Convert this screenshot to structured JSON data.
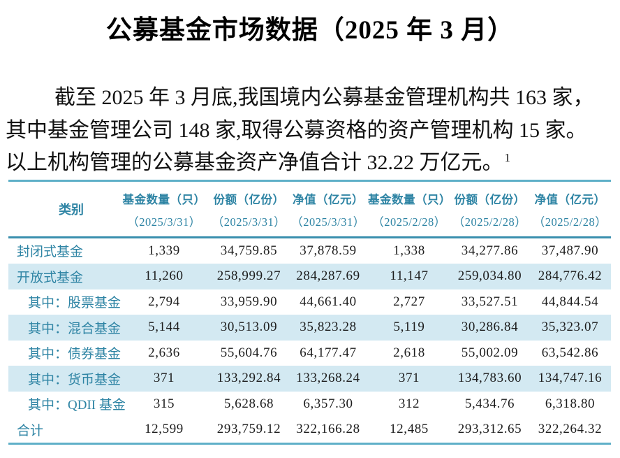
{
  "title": "公募基金市场数据（2025 年 3 月）",
  "paragraph": {
    "lines": [
      "截至 2025 年 3 月底,我国境内公募基金管理机构共 163 家，",
      "其中基金管理公司 148 家,取得公募资格的资产管理机构 15 家。",
      "以上机构管理的公募基金资产净值合计 32.22 万亿元。"
    ],
    "footnote_marker": "1"
  },
  "table": {
    "header": {
      "category_label": "类别",
      "columns": [
        {
          "label": "基金数量（只）",
          "date": "（2025/3/31）"
        },
        {
          "label": "份额（亿份）",
          "date": "（2025/3/31）"
        },
        {
          "label": "净值（亿元）",
          "date": "（2025/3/31）"
        },
        {
          "label": "基金数量（只）",
          "date": "（2025/2/28）"
        },
        {
          "label": "份额（亿份）",
          "date": "（2025/2/28）"
        },
        {
          "label": "净值（亿元）",
          "date": "（2025/2/28）"
        }
      ]
    },
    "rows": [
      {
        "category": "封闭式基金",
        "indent": false,
        "shaded": false,
        "values": [
          "1,339",
          "34,759.85",
          "37,878.59",
          "1,338",
          "34,277.86",
          "37,487.90"
        ]
      },
      {
        "category": "开放式基金",
        "indent": false,
        "shaded": true,
        "values": [
          "11,260",
          "258,999.27",
          "284,287.69",
          "11,147",
          "259,034.80",
          "284,776.42"
        ]
      },
      {
        "category": "其中：股票基金",
        "indent": true,
        "shaded": false,
        "values": [
          "2,794",
          "33,959.90",
          "44,661.40",
          "2,727",
          "33,527.51",
          "44,844.54"
        ]
      },
      {
        "category": "其中：混合基金",
        "indent": true,
        "shaded": true,
        "values": [
          "5,144",
          "30,513.09",
          "35,823.28",
          "5,119",
          "30,286.84",
          "35,323.07"
        ]
      },
      {
        "category": "其中：债券基金",
        "indent": true,
        "shaded": false,
        "values": [
          "2,636",
          "55,604.76",
          "64,177.47",
          "2,618",
          "55,002.09",
          "63,542.86"
        ]
      },
      {
        "category": "其中：货币基金",
        "indent": true,
        "shaded": true,
        "values": [
          "371",
          "133,292.84",
          "133,268.24",
          "371",
          "134,783.60",
          "134,747.16"
        ]
      },
      {
        "category": "其中：QDII 基金",
        "indent": true,
        "shaded": false,
        "values": [
          "315",
          "5,628.68",
          "6,357.30",
          "312",
          "5,434.76",
          "6,318.80"
        ]
      },
      {
        "category": "合计",
        "indent": false,
        "shaded": false,
        "values": [
          "12,599",
          "293,759.12",
          "322,166.28",
          "12,485",
          "293,312.65",
          "322,264.32"
        ]
      }
    ]
  },
  "colors": {
    "accent_text": "#2e84a4",
    "row_shade": "#d3e9f2",
    "outer_border": "#5fb0c8",
    "header_separator": "#3a8fae",
    "body_text": "#111111"
  }
}
